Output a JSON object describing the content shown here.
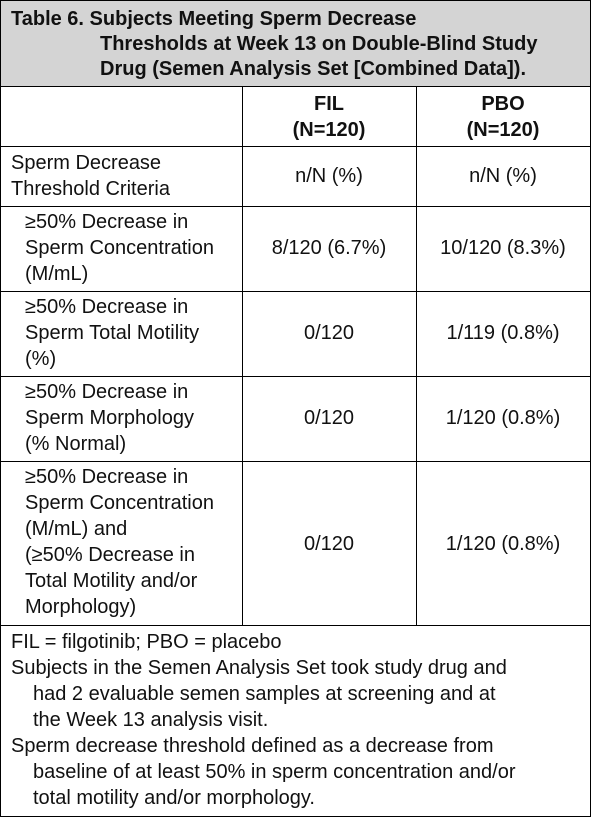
{
  "title": {
    "line1": "Table 6. Subjects Meeting Sperm Decrease",
    "line2": "Thresholds at Week 13 on Double-Blind Study",
    "line3": "Drug (Semen Analysis Set [Combined Data])."
  },
  "header": {
    "fil": {
      "name": "FIL",
      "n": "(N=120)"
    },
    "pbo": {
      "name": "PBO",
      "n": "(N=120)"
    }
  },
  "rows": [
    {
      "label": [
        "Sperm Decrease",
        "Threshold Criteria"
      ],
      "fil": "n/N (%)",
      "pbo": "n/N (%)"
    },
    {
      "label": [
        "≥50% Decrease in",
        "Sperm Concentration",
        "(M/mL)"
      ],
      "fil": "8/120 (6.7%)",
      "pbo": "10/120 (8.3%)"
    },
    {
      "label": [
        "≥50% Decrease in",
        "Sperm Total Motility",
        "(%)"
      ],
      "fil": "0/120",
      "pbo": "1/119 (0.8%)"
    },
    {
      "label": [
        "≥50% Decrease in",
        "Sperm Morphology",
        "(% Normal)"
      ],
      "fil": "0/120",
      "pbo": "1/120 (0.8%)"
    },
    {
      "label": [
        "≥50% Decrease in",
        "Sperm Concentration",
        "(M/mL) and",
        "(≥50% Decrease in",
        "Total Motility and/or",
        "Morphology)"
      ],
      "fil": "0/120",
      "pbo": "1/120 (0.8%)"
    }
  ],
  "footnotes": {
    "abbrev": "FIL = filgotinib; PBO = placebo",
    "note1": [
      "Subjects in the Semen Analysis Set took study drug and",
      "had 2 evaluable semen samples at screening and at",
      "the Week 13 analysis visit."
    ],
    "note2": [
      "Sperm decrease threshold defined as a decrease from",
      "baseline of at least 50% in sperm concentration and/or",
      "total motility and/or morphology."
    ]
  }
}
